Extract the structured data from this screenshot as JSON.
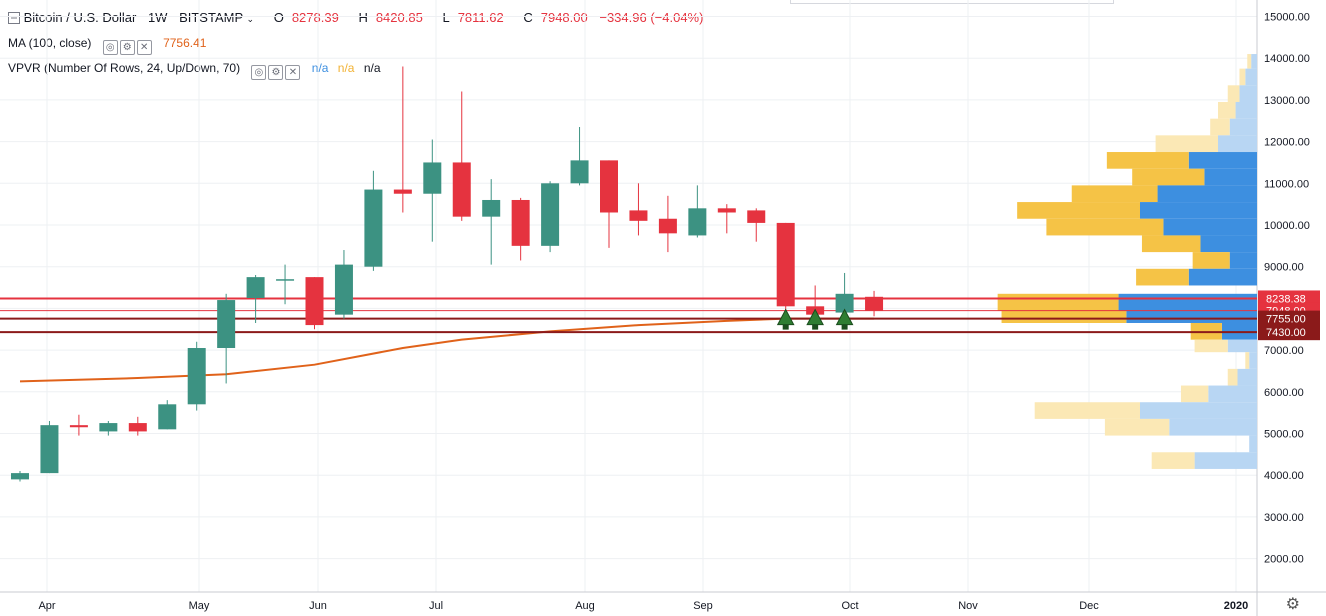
{
  "header": {
    "symbol": "Bitcoin / U.S. Dollar",
    "interval": "1W",
    "exchange": "BITSTAMP",
    "open_label": "O",
    "open": "8278.39",
    "high_label": "H",
    "high": "8420.85",
    "low_label": "L",
    "low": "7811.62",
    "close_label": "C",
    "close": "7948.00",
    "change": "−334.96 (−4.04%)"
  },
  "indicators": {
    "ma_label": "MA (100, close)",
    "ma_value": "7756.41",
    "vpvr_label": "VPVR (Number Of Rows, 24, Up/Down, 70)",
    "vpvr_values": [
      "n/a",
      "n/a",
      "n/a"
    ]
  },
  "colors": {
    "up": "#3c9282",
    "down": "#e5333f",
    "ma": "#e0621a",
    "vp_up": "#3d8fe0",
    "vp_down": "#f5c346",
    "vp_up_light": "#b8d6f3",
    "vp_down_light": "#fbe8b5"
  },
  "chart_data": {
    "type": "candlestick",
    "x_ticks": [
      "Apr",
      "May",
      "Jun",
      "Jul",
      "Aug",
      "Sep",
      "Oct",
      "Nov",
      "Dec",
      "2020"
    ],
    "y_ticks": [
      "15000.00",
      "14000.00",
      "13000.00",
      "12000.00",
      "11000.00",
      "10000.00",
      "9000.00",
      "8000.00",
      "7000.00",
      "6000.00",
      "5000.00",
      "4000.00",
      "3000.00",
      "2000.00"
    ],
    "ylim": [
      1300,
      15300
    ],
    "candles": [
      {
        "w": 0,
        "o": 3900,
        "h": 4100,
        "l": 3850,
        "c": 4050
      },
      {
        "w": 1,
        "o": 4050,
        "h": 5300,
        "l": 4050,
        "c": 5200
      },
      {
        "w": 2,
        "o": 5200,
        "h": 5450,
        "l": 4950,
        "c": 5150
      },
      {
        "w": 3,
        "o": 5050,
        "h": 5300,
        "l": 4950,
        "c": 5250
      },
      {
        "w": 4,
        "o": 5250,
        "h": 5400,
        "l": 4950,
        "c": 5050
      },
      {
        "w": 5,
        "o": 5100,
        "h": 5800,
        "l": 5100,
        "c": 5700
      },
      {
        "w": 6,
        "o": 5700,
        "h": 7200,
        "l": 5550,
        "c": 7050
      },
      {
        "w": 7,
        "o": 7050,
        "h": 8350,
        "l": 6200,
        "c": 8200
      },
      {
        "w": 8,
        "o": 8250,
        "h": 8800,
        "l": 7650,
        "c": 8750
      },
      {
        "w": 9,
        "o": 8700,
        "h": 9050,
        "l": 8100,
        "c": 8700
      },
      {
        "w": 10,
        "o": 8750,
        "h": 8750,
        "l": 7500,
        "c": 7600
      },
      {
        "w": 11,
        "o": 7850,
        "h": 9400,
        "l": 7750,
        "c": 9050
      },
      {
        "w": 12,
        "o": 9000,
        "h": 11300,
        "l": 8900,
        "c": 10850
      },
      {
        "w": 13,
        "o": 10850,
        "h": 13800,
        "l": 10300,
        "c": 10750
      },
      {
        "w": 14,
        "o": 10750,
        "h": 12050,
        "l": 9600,
        "c": 11500
      },
      {
        "w": 15,
        "o": 11500,
        "h": 13200,
        "l": 10100,
        "c": 10200
      },
      {
        "w": 16,
        "o": 10200,
        "h": 11100,
        "l": 9050,
        "c": 10600
      },
      {
        "w": 17,
        "o": 10600,
        "h": 10650,
        "l": 9150,
        "c": 9500
      },
      {
        "w": 18,
        "o": 9500,
        "h": 11050,
        "l": 9350,
        "c": 11000
      },
      {
        "w": 19,
        "o": 11000,
        "h": 12350,
        "l": 10950,
        "c": 11550
      },
      {
        "w": 20,
        "o": 11550,
        "h": 11550,
        "l": 9450,
        "c": 10300
      },
      {
        "w": 21,
        "o": 10350,
        "h": 11000,
        "l": 9750,
        "c": 10100
      },
      {
        "w": 22,
        "o": 10150,
        "h": 10700,
        "l": 9350,
        "c": 9800
      },
      {
        "w": 23,
        "o": 9750,
        "h": 10950,
        "l": 9700,
        "c": 10400
      },
      {
        "w": 24,
        "o": 10400,
        "h": 10500,
        "l": 9800,
        "c": 10300
      },
      {
        "w": 25,
        "o": 10350,
        "h": 10400,
        "l": 9600,
        "c": 10050
      },
      {
        "w": 26,
        "o": 10050,
        "h": 10050,
        "l": 7800,
        "c": 8050
      },
      {
        "w": 27,
        "o": 8050,
        "h": 8550,
        "l": 7850,
        "c": 7850
      },
      {
        "w": 28,
        "o": 7900,
        "h": 8850,
        "l": 7750,
        "c": 8350
      },
      {
        "w": 29,
        "o": 8278,
        "h": 8420,
        "l": 7811,
        "c": 7948
      }
    ],
    "ma_line": [
      [
        0,
        6250
      ],
      [
        4,
        6330
      ],
      [
        7,
        6420
      ],
      [
        10,
        6650
      ],
      [
        13,
        7050
      ],
      [
        15,
        7250
      ],
      [
        18,
        7450
      ],
      [
        21,
        7600
      ],
      [
        24,
        7700
      ],
      [
        26,
        7756
      ],
      [
        29,
        7756
      ]
    ],
    "markers_weeks": [
      26,
      27,
      28
    ],
    "h_lines": [
      {
        "price": 8238.38,
        "color": "#e5333f",
        "width": 2
      },
      {
        "price": 7948.0,
        "color": "#e5333f",
        "width": 1
      },
      {
        "price": 7755.0,
        "color": "#8b1a1a",
        "width": 2
      },
      {
        "price": 7430.0,
        "color": "#8b1a1a",
        "width": 2
      }
    ],
    "price_labels": [
      {
        "price": 8238.38,
        "text": "8238.38",
        "bg": "#e5333f"
      },
      {
        "price": 7948.0,
        "text": "7948.00",
        "bg": "#e5333f"
      },
      {
        "price": 7755.0,
        "text": "7755.00",
        "bg": "#8b1a1a"
      },
      {
        "price": 7430.0,
        "text": "7430.00",
        "bg": "#8b1a1a"
      }
    ],
    "volume_profile": [
      {
        "lo": 13750,
        "hi": 14100,
        "up": 0.3,
        "down": 0.2,
        "light": true
      },
      {
        "lo": 13350,
        "hi": 13750,
        "up": 0.6,
        "down": 0.3,
        "light": true
      },
      {
        "lo": 12950,
        "hi": 13350,
        "up": 0.9,
        "down": 0.6,
        "light": true
      },
      {
        "lo": 12550,
        "hi": 12950,
        "up": 1.1,
        "down": 0.9,
        "light": true
      },
      {
        "lo": 12150,
        "hi": 12550,
        "up": 1.4,
        "down": 1.0,
        "light": true
      },
      {
        "lo": 11750,
        "hi": 12150,
        "up": 2.0,
        "down": 3.2,
        "light": true
      },
      {
        "lo": 11350,
        "hi": 11750,
        "up": 3.5,
        "down": 4.2,
        "light": false
      },
      {
        "lo": 10950,
        "hi": 11350,
        "up": 2.7,
        "down": 3.7,
        "light": false
      },
      {
        "lo": 10550,
        "hi": 10950,
        "up": 5.1,
        "down": 4.4,
        "light": false
      },
      {
        "lo": 10150,
        "hi": 10550,
        "up": 6.0,
        "down": 6.3,
        "light": false
      },
      {
        "lo": 9750,
        "hi": 10150,
        "up": 4.8,
        "down": 6.0,
        "light": false
      },
      {
        "lo": 9350,
        "hi": 9750,
        "up": 2.9,
        "down": 3.0,
        "light": false
      },
      {
        "lo": 8950,
        "hi": 9350,
        "up": 1.4,
        "down": 1.9,
        "light": false
      },
      {
        "lo": 8550,
        "hi": 8950,
        "up": 3.5,
        "down": 2.7,
        "light": false
      },
      {
        "lo": 7950,
        "hi": 8350,
        "up": 7.1,
        "down": 6.2,
        "light": false
      },
      {
        "lo": 7650,
        "hi": 7950,
        "up": 6.7,
        "down": 6.4,
        "light": false
      },
      {
        "lo": 7250,
        "hi": 7650,
        "up": 1.8,
        "down": 1.6,
        "light": false
      },
      {
        "lo": 6950,
        "hi": 7250,
        "up": 1.5,
        "down": 1.7,
        "light": true
      },
      {
        "lo": 6550,
        "hi": 6950,
        "up": 0.4,
        "down": 0.2,
        "light": true
      },
      {
        "lo": 6150,
        "hi": 6550,
        "up": 1.0,
        "down": 0.5,
        "light": true
      },
      {
        "lo": 5750,
        "hi": 6150,
        "up": 2.5,
        "down": 1.4,
        "light": true
      },
      {
        "lo": 5350,
        "hi": 5750,
        "up": 6.0,
        "down": 5.4,
        "light": true
      },
      {
        "lo": 4950,
        "hi": 5350,
        "up": 4.5,
        "down": 3.3,
        "light": true
      },
      {
        "lo": 4550,
        "hi": 4950,
        "up": 0.4,
        "down": 0.0,
        "light": true
      },
      {
        "lo": 4150,
        "hi": 4550,
        "up": 3.2,
        "down": 2.2,
        "light": true
      }
    ]
  }
}
